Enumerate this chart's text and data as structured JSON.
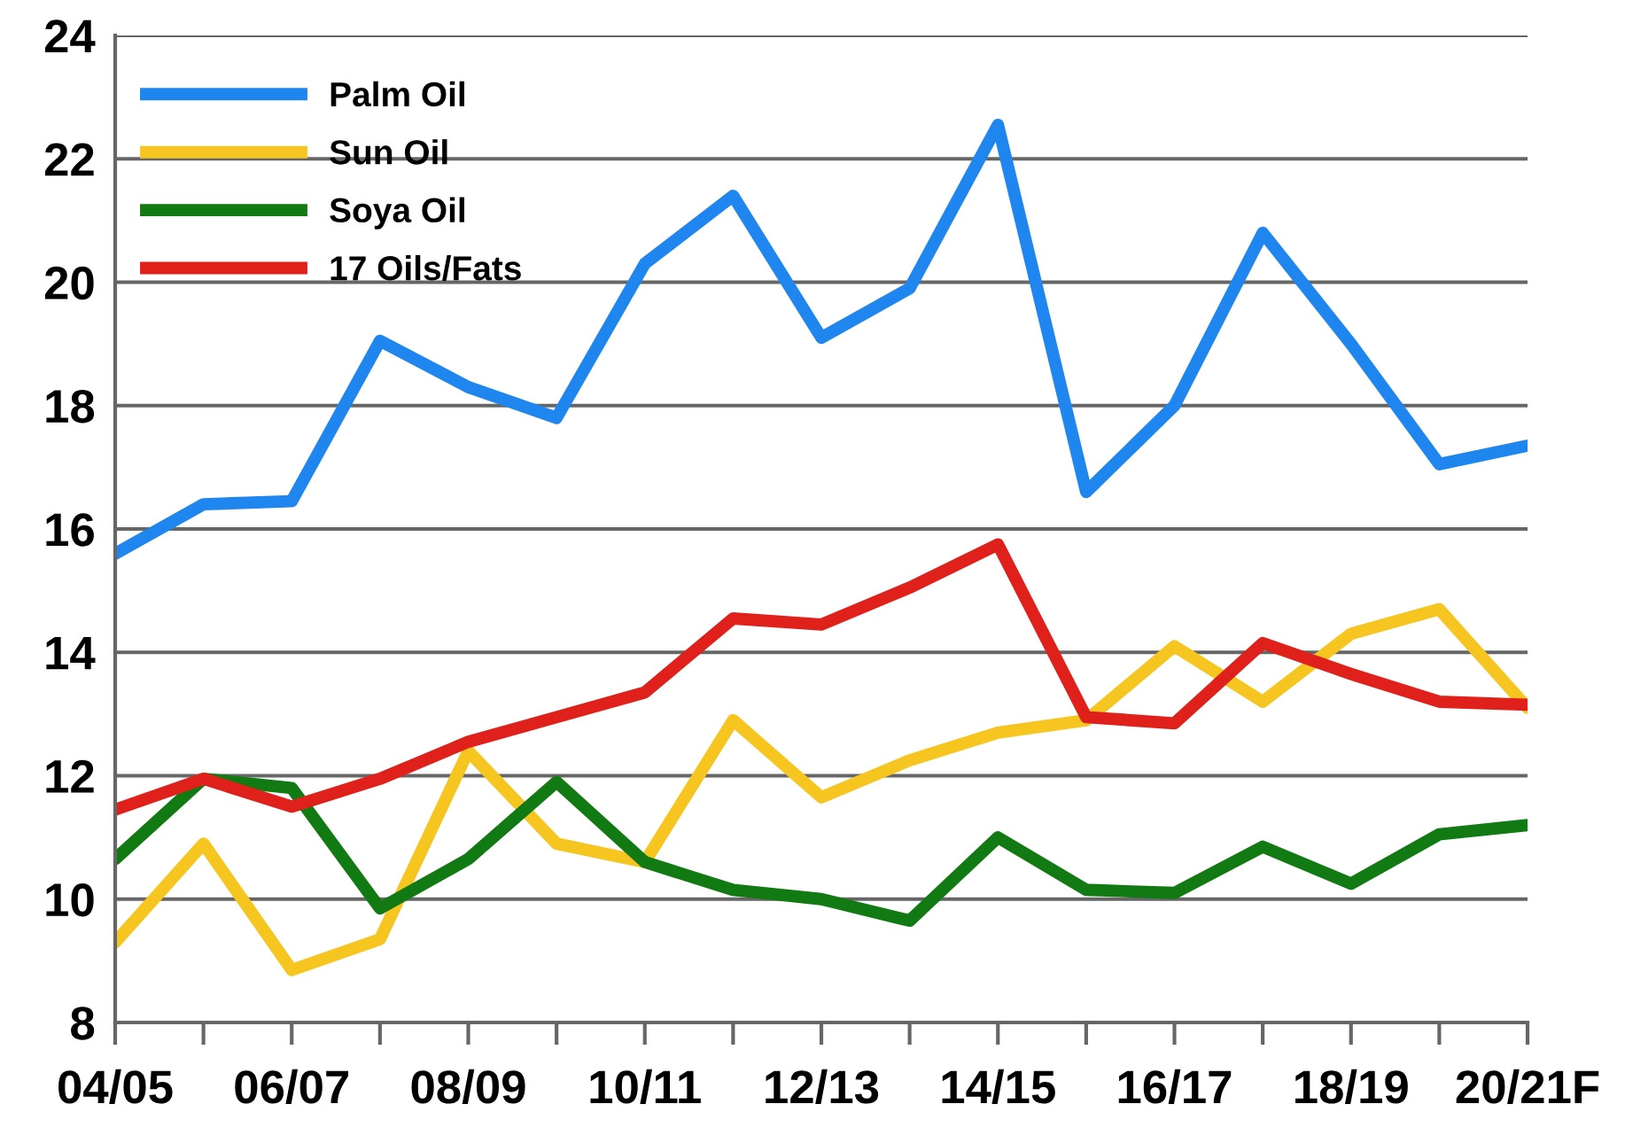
{
  "chart_data": {
    "type": "line",
    "categories": [
      "04/05",
      null,
      "06/07",
      null,
      "08/09",
      null,
      "10/11",
      null,
      "12/13",
      null,
      "14/15",
      null,
      "16/17",
      null,
      "18/19",
      null,
      "20/21F"
    ],
    "series": [
      {
        "name": "Palm Oil",
        "color": "#1f86f0",
        "values": [
          15.6,
          16.4,
          16.45,
          19.05,
          18.3,
          17.8,
          20.3,
          21.4,
          19.1,
          19.9,
          22.55,
          16.6,
          18.0,
          20.8,
          19.0,
          17.05,
          17.35
        ]
      },
      {
        "name": "Sun Oil",
        "color": "#f7c520",
        "values": [
          9.3,
          10.9,
          8.85,
          9.35,
          12.4,
          10.9,
          10.6,
          12.9,
          11.65,
          12.25,
          12.7,
          12.9,
          14.1,
          13.2,
          14.3,
          14.7,
          13.1
        ]
      },
      {
        "name": "Soya Oil",
        "color": "#127a12",
        "values": [
          10.65,
          11.95,
          11.8,
          9.85,
          10.65,
          11.9,
          10.6,
          10.15,
          10.0,
          9.65,
          11.0,
          10.15,
          10.1,
          10.85,
          10.25,
          11.05,
          11.2
        ]
      },
      {
        "name": "17 Oils/Fats",
        "color": "#e0201a",
        "values": [
          11.45,
          11.95,
          11.5,
          11.95,
          12.55,
          12.95,
          13.35,
          14.55,
          14.45,
          15.05,
          15.75,
          12.95,
          12.85,
          14.15,
          13.65,
          13.2,
          13.15
        ]
      }
    ],
    "ylim": [
      8,
      24
    ],
    "yticks": [
      8,
      10,
      12,
      14,
      16,
      18,
      20,
      22,
      24
    ],
    "grid": "y",
    "legend": "top left",
    "marker": "none",
    "line_style": "solid"
  }
}
